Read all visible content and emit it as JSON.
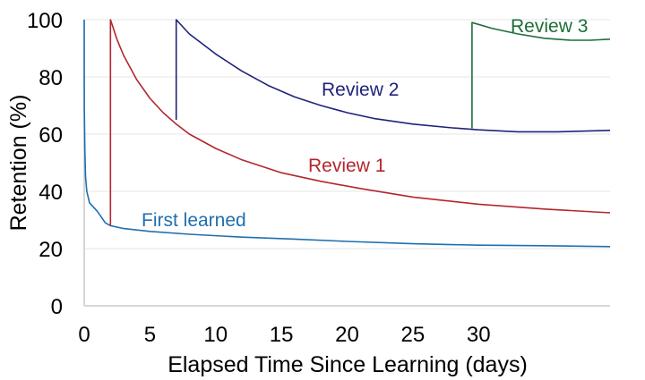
{
  "chart_data": {
    "type": "line",
    "title": "",
    "xlabel": "Elapsed Time Since Learning (days)",
    "ylabel": "Retention (%)",
    "xlim": [
      0,
      40
    ],
    "ylim": [
      0,
      100
    ],
    "x_ticks": [
      0,
      5,
      10,
      15,
      20,
      25,
      30
    ],
    "y_ticks": [
      0,
      20,
      40,
      60,
      80,
      100
    ],
    "grid": "horizontal",
    "legend": "none (labels placed next to series)",
    "series": [
      {
        "name": "First learned",
        "color": "#1f6fae",
        "points": [
          [
            0,
            100
          ],
          [
            0.01,
            70
          ],
          [
            0.05,
            55
          ],
          [
            0.1,
            45
          ],
          [
            0.2,
            40
          ],
          [
            0.4,
            36
          ],
          [
            0.7,
            34.5
          ],
          [
            1.0,
            33
          ],
          [
            1.3,
            31
          ],
          [
            1.6,
            29
          ],
          [
            2.0,
            28
          ],
          [
            3,
            27
          ],
          [
            5,
            26
          ],
          [
            8,
            25
          ],
          [
            12,
            24
          ],
          [
            16,
            23.3
          ],
          [
            20,
            22.5
          ],
          [
            25,
            21.7
          ],
          [
            30,
            21.2
          ],
          [
            35,
            21
          ],
          [
            40,
            20.7
          ]
        ]
      },
      {
        "name": "Review 1",
        "color": "#b3262e",
        "points": [
          [
            2.0,
            28
          ],
          [
            2.0,
            100
          ],
          [
            2.5,
            93
          ],
          [
            3,
            87.5
          ],
          [
            4,
            79
          ],
          [
            5,
            72.5
          ],
          [
            6,
            67.5
          ],
          [
            7,
            63.5
          ],
          [
            8,
            60
          ],
          [
            10,
            55
          ],
          [
            12,
            51
          ],
          [
            15,
            46.5
          ],
          [
            18,
            43.5
          ],
          [
            21,
            41
          ],
          [
            25,
            38
          ],
          [
            30,
            35.5
          ],
          [
            35,
            33.8
          ],
          [
            40,
            32.5
          ]
        ]
      },
      {
        "name": "Review 2",
        "color": "#1f237a",
        "points": [
          [
            7,
            65
          ],
          [
            7,
            100
          ],
          [
            8,
            95
          ],
          [
            10,
            88
          ],
          [
            12,
            82
          ],
          [
            14,
            77
          ],
          [
            16,
            73
          ],
          [
            18,
            70
          ],
          [
            20,
            67.5
          ],
          [
            22,
            65.5
          ],
          [
            25,
            63.5
          ],
          [
            28,
            62.2
          ],
          [
            30,
            61.5
          ],
          [
            33,
            60.8
          ],
          [
            36,
            60.8
          ],
          [
            40,
            61.3
          ]
        ]
      },
      {
        "name": "Review 3",
        "color": "#1d6e3a",
        "points": [
          [
            29.5,
            62
          ],
          [
            29.5,
            99
          ],
          [
            31,
            97
          ],
          [
            33,
            95
          ],
          [
            35,
            93.5
          ],
          [
            37,
            92.8
          ],
          [
            38.5,
            92.8
          ],
          [
            40,
            93.2
          ]
        ]
      }
    ],
    "label_text": {
      "First learned": "First learned",
      "Review 1": "Review 1",
      "Review 2": "Review 2",
      "Review 3": "Review 3"
    }
  }
}
